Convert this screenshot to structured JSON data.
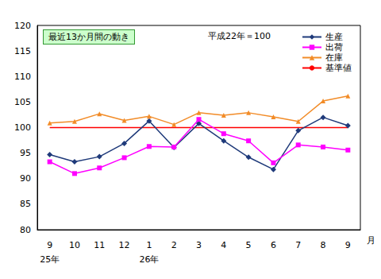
{
  "chart_data": {
    "type": "line",
    "categories": [
      "9",
      "10",
      "11",
      "12",
      "1",
      "2",
      "3",
      "4",
      "5",
      "6",
      "7",
      "8",
      "9"
    ],
    "year_labels": [
      "25年",
      null,
      null,
      null,
      "26年",
      null,
      null,
      null,
      null,
      null,
      null,
      null,
      null
    ],
    "xlabel": "月",
    "annotations": [
      "最近13か月間の動き",
      "平成22年＝100"
    ],
    "series": [
      {
        "name": "生産",
        "color": "#1f3a7a",
        "marker": "diamond",
        "values": [
          94.7,
          93.3,
          94.3,
          96.9,
          101.3,
          96.1,
          100.8,
          97.4,
          94.2,
          91.8,
          99.4,
          102.0,
          100.4
        ]
      },
      {
        "name": "出荷",
        "color": "#ff00ff",
        "marker": "square",
        "values": [
          93.3,
          91.0,
          92.1,
          94.1,
          96.3,
          96.2,
          101.6,
          98.8,
          97.4,
          93.1,
          96.6,
          96.2,
          95.6
        ]
      },
      {
        "name": "在庫",
        "color": "#f28c28",
        "marker": "triangle",
        "values": [
          100.9,
          101.2,
          102.7,
          101.4,
          102.2,
          100.6,
          102.9,
          102.4,
          102.9,
          102.1,
          101.2,
          105.2,
          106.2
        ]
      },
      {
        "name": "基準値",
        "color": "#ff0000",
        "marker": "none",
        "values": [
          100,
          100,
          100,
          100,
          100,
          100,
          100,
          100,
          100,
          100,
          100,
          100,
          100
        ]
      }
    ],
    "ylim": [
      80,
      120
    ],
    "yticks": [
      80,
      85,
      90,
      95,
      100,
      105,
      110,
      115,
      120
    ],
    "grid": false,
    "legend": "upper right"
  }
}
